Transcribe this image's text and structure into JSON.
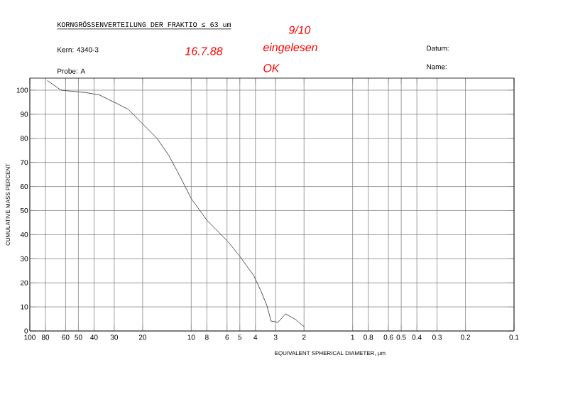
{
  "chart_data": {
    "type": "line",
    "title": "KORNGRÖSSENVERTEILUNG DER FRAKTIO ≤ 63 um",
    "xlabel": "EQUIVALENT SPHERICAL DIAMETER, µm",
    "ylabel": "CUMULATIVE MASS PERCENT",
    "annotations": [
      "Kern: 4340-3",
      "Probe: A",
      "Datum:",
      "Name:",
      "16.7.88",
      "9/10",
      "eingelesen",
      "OK"
    ],
    "log": "x",
    "grid": true,
    "marker": "none",
    "line_style": "solid",
    "xlim": [
      100,
      0.1
    ],
    "ylim": [
      0,
      105
    ],
    "xticks": [
      100,
      80,
      60,
      50,
      40,
      30,
      20,
      10,
      8,
      6,
      5,
      4,
      3,
      2,
      1,
      0.8,
      0.6,
      0.5,
      0.4,
      0.3,
      0.2,
      0.1
    ],
    "yticks": [
      0,
      10,
      20,
      30,
      40,
      50,
      60,
      70,
      80,
      90,
      100
    ],
    "series": [
      {
        "color": "#555555",
        "x": [
          78,
          64,
          45,
          37,
          30,
          24.5,
          20,
          16.3,
          13.8,
          11.8,
          10,
          8,
          5.9,
          5,
          4.1,
          3.7,
          3.4,
          3.2,
          2.9,
          2.6,
          2.25,
          2.0
        ],
        "values": [
          104,
          100,
          99,
          98,
          95,
          92,
          86,
          80,
          73,
          64.5,
          55,
          46,
          37,
          31,
          23,
          16.6,
          10.6,
          4.1,
          3.6,
          7.1,
          4.7,
          1.8
        ]
      }
    ]
  }
}
